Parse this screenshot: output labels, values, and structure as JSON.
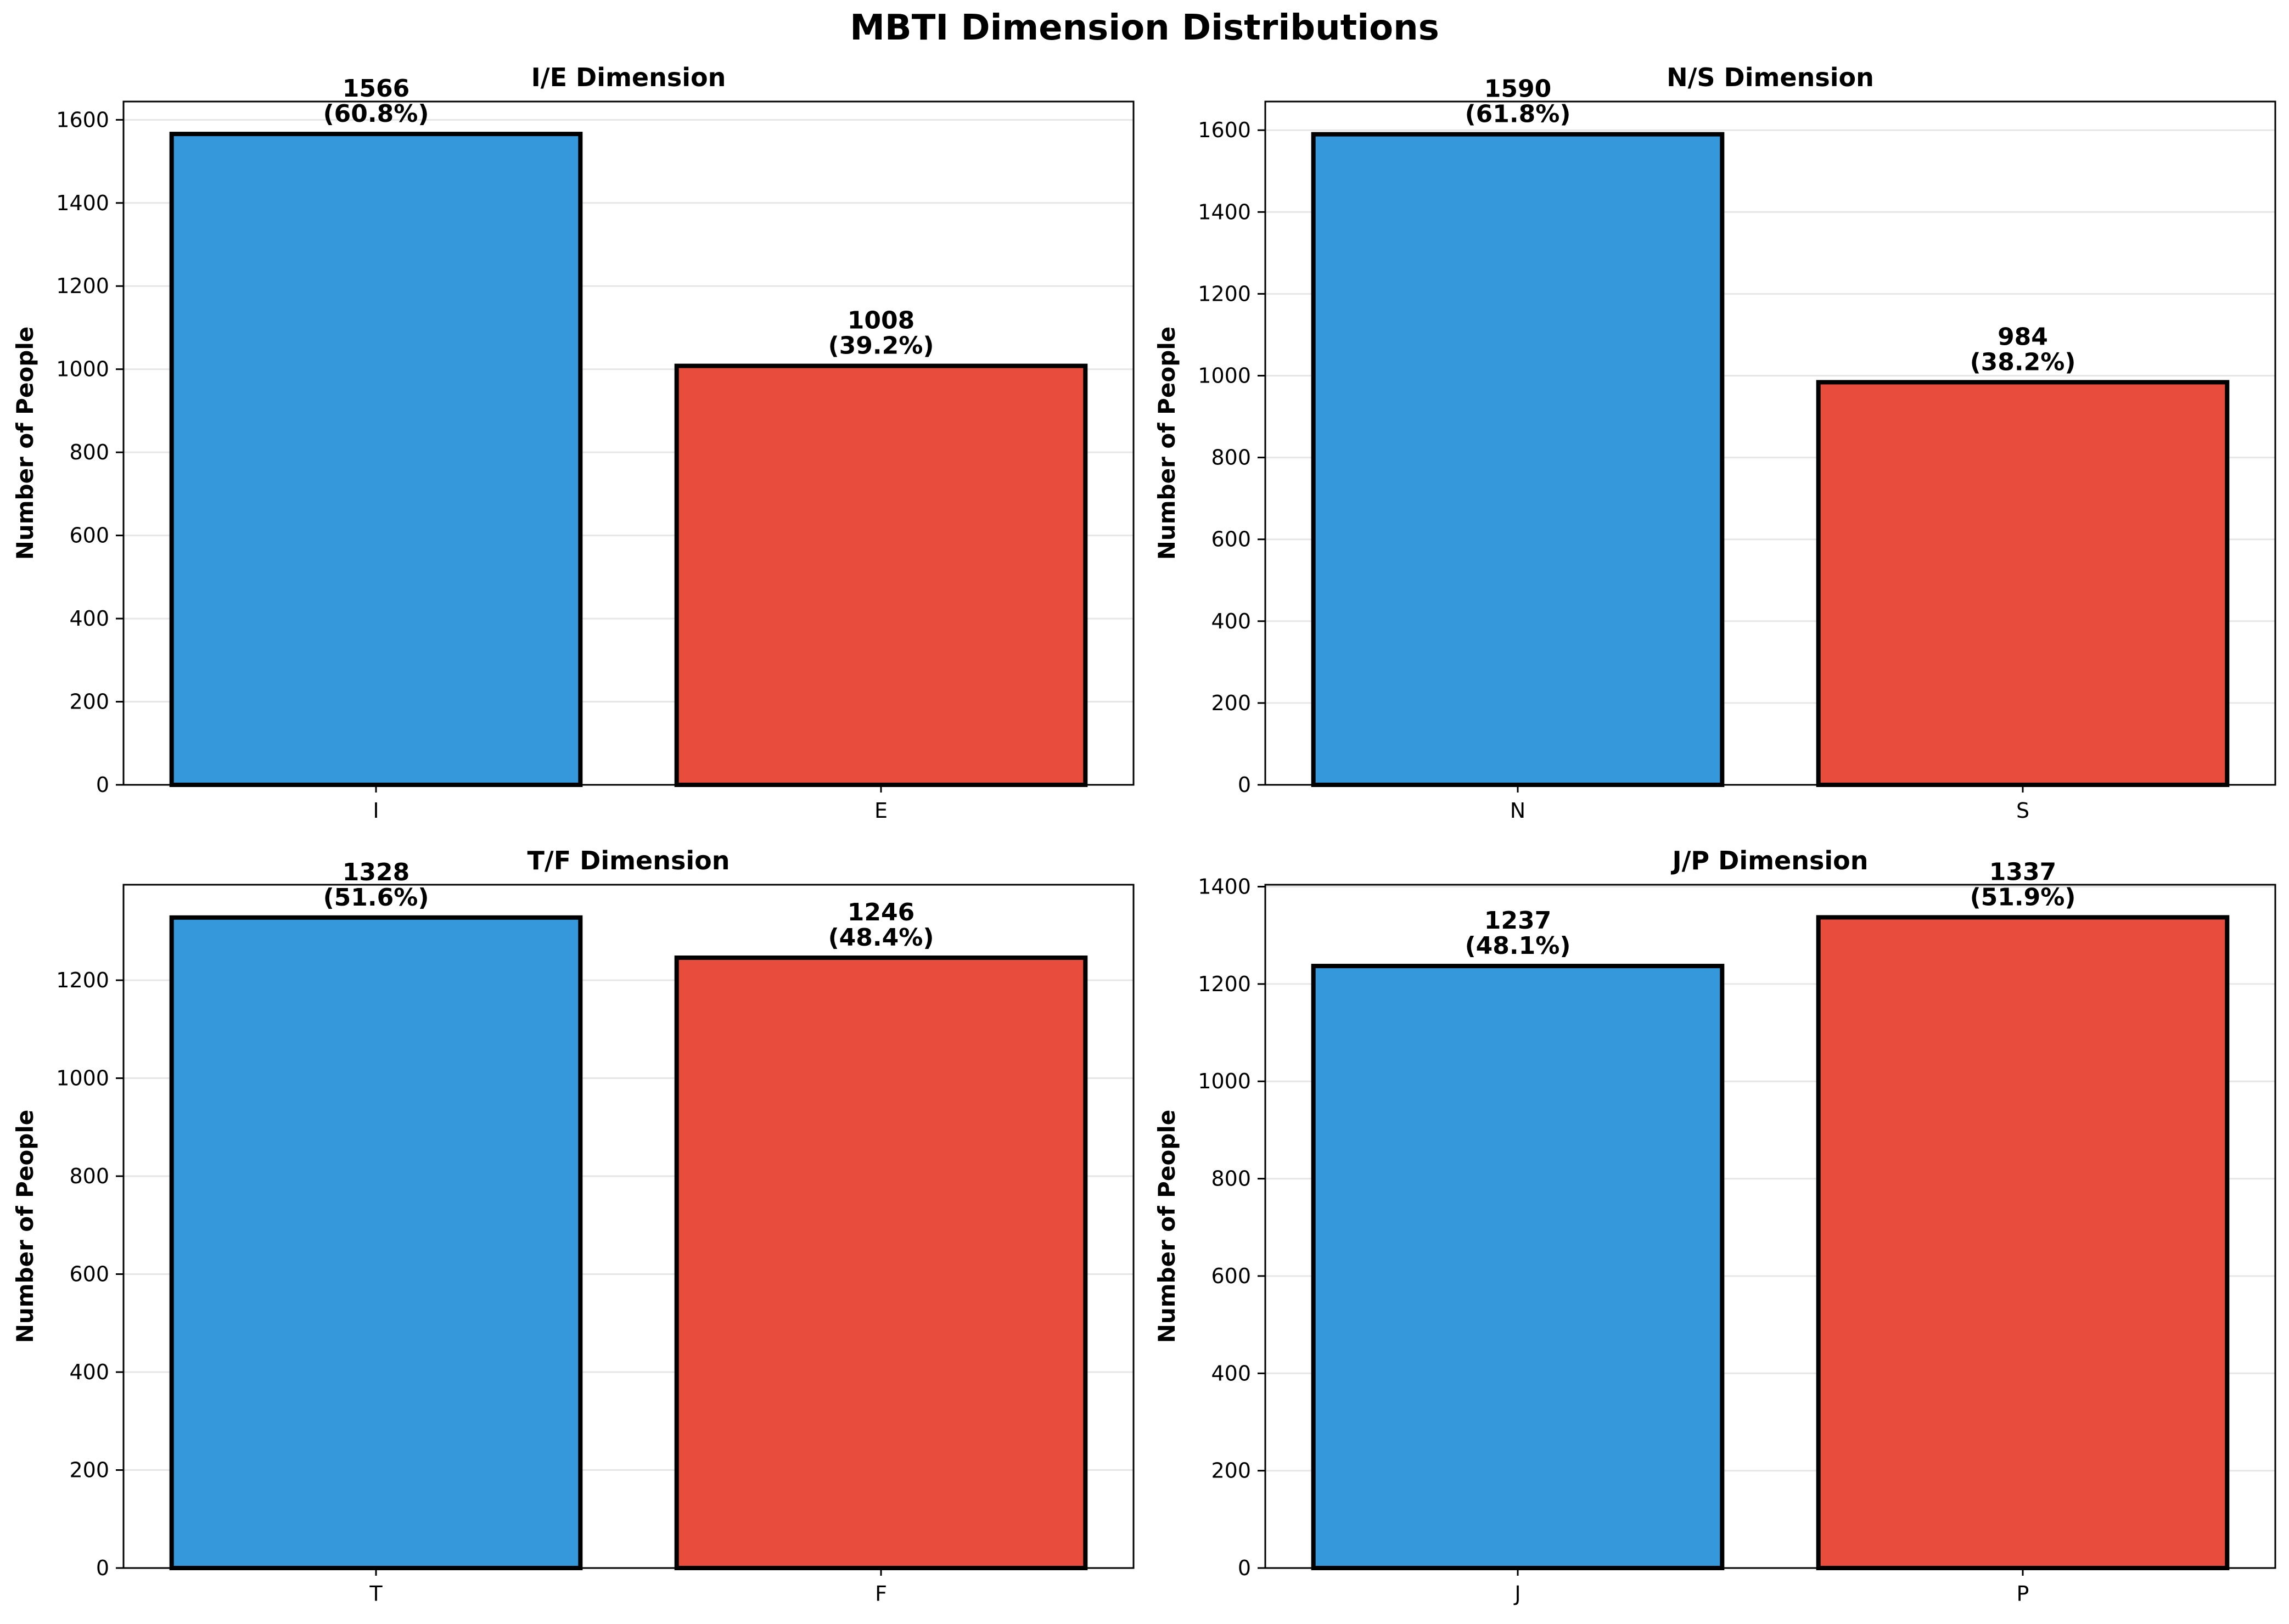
{
  "figure": {
    "title": "MBTI Dimension Distributions"
  },
  "colors": {
    "first": "#3498db",
    "second": "#e74c3c",
    "edge": "#000000",
    "grid": "#e6e6e6"
  },
  "chart_data": [
    {
      "type": "bar",
      "title": "I/E Dimension",
      "ylabel": "Number of People",
      "xlabel": "",
      "categories": [
        "I",
        "E"
      ],
      "values": [
        1566,
        1008
      ],
      "data_labels": [
        "1566\n(60.8%)",
        "1008\n(39.2%)"
      ],
      "ylim": [
        0,
        1644
      ],
      "yticks": [
        0,
        200,
        400,
        600,
        800,
        1000,
        1200,
        1400,
        1600
      ],
      "grid": "y"
    },
    {
      "type": "bar",
      "title": "N/S Dimension",
      "ylabel": "Number of People",
      "xlabel": "",
      "categories": [
        "N",
        "S"
      ],
      "values": [
        1590,
        984
      ],
      "data_labels": [
        "1590\n(61.8%)",
        "984\n(38.2%)"
      ],
      "ylim": [
        0,
        1670
      ],
      "yticks": [
        0,
        200,
        400,
        600,
        800,
        1000,
        1200,
        1400,
        1600
      ],
      "grid": "y"
    },
    {
      "type": "bar",
      "title": "T/F Dimension",
      "ylabel": "Number of People",
      "xlabel": "",
      "categories": [
        "T",
        "F"
      ],
      "values": [
        1328,
        1246
      ],
      "data_labels": [
        "1328\n(51.6%)",
        "1246\n(48.4%)"
      ],
      "ylim": [
        0,
        1395
      ],
      "yticks": [
        0,
        200,
        400,
        600,
        800,
        1000,
        1200
      ],
      "grid": "y"
    },
    {
      "type": "bar",
      "title": "J/P Dimension",
      "ylabel": "Number of People",
      "xlabel": "",
      "categories": [
        "J",
        "P"
      ],
      "values": [
        1237,
        1337
      ],
      "data_labels": [
        "1237\n(48.1%)",
        "1337\n(51.9%)"
      ],
      "ylim": [
        0,
        1404
      ],
      "yticks": [
        0,
        200,
        400,
        600,
        800,
        1000,
        1200,
        1400
      ],
      "grid": "y"
    }
  ]
}
